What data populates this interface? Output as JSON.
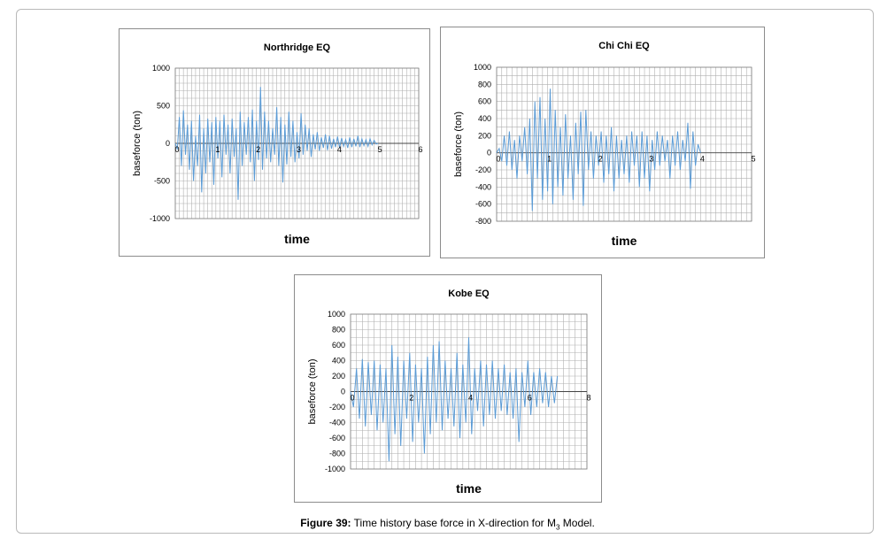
{
  "chart_data": [
    {
      "type": "line",
      "title": "Northridge EQ",
      "xlabel": "time",
      "ylabel": "baseforce (ton)",
      "xlim": [
        0,
        6
      ],
      "ylim": [
        -1000,
        1000
      ],
      "xticks": [
        "0",
        "1",
        "2",
        "3",
        "4",
        "5",
        "6"
      ],
      "yticks": [
        "1000",
        "500",
        "0",
        "-500",
        "-1000"
      ],
      "grid": true,
      "line_color": "#5b9bd5",
      "series": [
        {
          "x": [
            0,
            0.05,
            0.1,
            0.15,
            0.2,
            0.25,
            0.3,
            0.35,
            0.4,
            0.45,
            0.5,
            0.55,
            0.6,
            0.65,
            0.7,
            0.75,
            0.8,
            0.85,
            0.9,
            0.95,
            1,
            1.05,
            1.1,
            1.15,
            1.2,
            1.25,
            1.3,
            1.35,
            1.4,
            1.45,
            1.5,
            1.55,
            1.6,
            1.65,
            1.7,
            1.75,
            1.8,
            1.85,
            1.9,
            1.95,
            2,
            2.05,
            2.1,
            2.15,
            2.2,
            2.25,
            2.3,
            2.35,
            2.4,
            2.45,
            2.5,
            2.55,
            2.6,
            2.65,
            2.7,
            2.75,
            2.8,
            2.85,
            2.9,
            2.95,
            3,
            3.05,
            3.1,
            3.15,
            3.2,
            3.25,
            3.3,
            3.35,
            3.4,
            3.45,
            3.5,
            3.55,
            3.6,
            3.65,
            3.7,
            3.75,
            3.8,
            3.85,
            3.9,
            3.95,
            4,
            4.05,
            4.1,
            4.15,
            4.2,
            4.25,
            4.3,
            4.35,
            4.4,
            4.45,
            4.5,
            4.55,
            4.6,
            4.65,
            4.7,
            4.75,
            4.8,
            4.85,
            4.9,
            4.95,
            5
          ],
          "values": [
            0,
            -80,
            350,
            -300,
            440,
            -150,
            250,
            -350,
            300,
            -500,
            100,
            -300,
            380,
            -650,
            200,
            -400,
            330,
            -250,
            280,
            -550,
            350,
            -200,
            300,
            -450,
            380,
            -150,
            250,
            -400,
            330,
            -180,
            200,
            -750,
            420,
            -300,
            280,
            -150,
            350,
            -250,
            450,
            -500,
            300,
            -220,
            750,
            -350,
            420,
            -200,
            300,
            -250,
            200,
            -150,
            480,
            -300,
            350,
            -520,
            250,
            -280,
            420,
            -180,
            300,
            -250,
            150,
            -200,
            400,
            -150,
            250,
            -100,
            200,
            -180,
            120,
            -80,
            150,
            -100,
            80,
            -60,
            120,
            -90,
            100,
            -70,
            60,
            -50,
            90,
            -60,
            70,
            -40,
            50,
            -60,
            80,
            -50,
            60,
            -40,
            100,
            -50,
            60,
            -30,
            50,
            -40,
            60,
            -20,
            40,
            -10,
            0
          ]
        }
      ]
    },
    {
      "type": "line",
      "title": "Chi Chi EQ",
      "xlabel": "time",
      "ylabel": "baseforce (ton)",
      "xlim": [
        0,
        5
      ],
      "ylim": [
        -800,
        1000
      ],
      "xticks": [
        "0",
        "1",
        "2",
        "3",
        "4",
        "5"
      ],
      "yticks": [
        "1000",
        "800",
        "600",
        "400",
        "200",
        "0",
        "-200",
        "-400",
        "-600",
        "-800"
      ],
      "grid": true,
      "line_color": "#5b9bd5",
      "series": [
        {
          "x": [
            0,
            0.05,
            0.1,
            0.15,
            0.2,
            0.25,
            0.3,
            0.35,
            0.4,
            0.45,
            0.5,
            0.55,
            0.6,
            0.65,
            0.7,
            0.75,
            0.8,
            0.85,
            0.9,
            0.95,
            1,
            1.05,
            1.1,
            1.15,
            1.2,
            1.25,
            1.3,
            1.35,
            1.4,
            1.45,
            1.5,
            1.55,
            1.6,
            1.65,
            1.7,
            1.75,
            1.8,
            1.85,
            1.9,
            1.95,
            2,
            2.05,
            2.1,
            2.15,
            2.2,
            2.25,
            2.3,
            2.35,
            2.4,
            2.45,
            2.5,
            2.55,
            2.6,
            2.65,
            2.7,
            2.75,
            2.8,
            2.85,
            2.9,
            2.95,
            3,
            3.05,
            3.1,
            3.15,
            3.2,
            3.25,
            3.3,
            3.35,
            3.4,
            3.45,
            3.5,
            3.55,
            3.6,
            3.65,
            3.7,
            3.75,
            3.8,
            3.85,
            3.9,
            3.95,
            4
          ],
          "values": [
            0,
            50,
            -100,
            200,
            -150,
            250,
            -200,
            150,
            -300,
            200,
            -100,
            300,
            -250,
            400,
            -680,
            600,
            -300,
            650,
            -550,
            400,
            -450,
            750,
            -600,
            500,
            -400,
            300,
            -500,
            450,
            -300,
            200,
            -550,
            350,
            -250,
            480,
            -620,
            500,
            -200,
            250,
            -300,
            200,
            -150,
            250,
            -350,
            200,
            -250,
            300,
            -450,
            200,
            -300,
            150,
            -250,
            200,
            -350,
            250,
            -150,
            200,
            -400,
            250,
            -300,
            200,
            -450,
            150,
            -200,
            250,
            -150,
            200,
            -100,
            150,
            -300,
            200,
            -150,
            250,
            -200,
            150,
            -100,
            350,
            -420,
            250,
            -150,
            100,
            0
          ]
        }
      ]
    },
    {
      "type": "line",
      "title": "Kobe EQ",
      "xlabel": "time",
      "ylabel": "baseforce (ton)",
      "xlim": [
        0,
        8
      ],
      "ylim": [
        -1000,
        1000
      ],
      "xticks": [
        "0",
        "2",
        "4",
        "6",
        "8"
      ],
      "yticks": [
        "1000",
        "800",
        "600",
        "400",
        "200",
        "0",
        "-200",
        "-400",
        "-600",
        "-800",
        "-1000"
      ],
      "grid": true,
      "line_color": "#5b9bd5",
      "series": [
        {
          "x": [
            0,
            0.1,
            0.2,
            0.3,
            0.4,
            0.5,
            0.6,
            0.7,
            0.8,
            0.9,
            1,
            1.1,
            1.2,
            1.3,
            1.4,
            1.5,
            1.6,
            1.7,
            1.8,
            1.9,
            2,
            2.1,
            2.2,
            2.3,
            2.4,
            2.5,
            2.6,
            2.7,
            2.8,
            2.9,
            3,
            3.1,
            3.2,
            3.3,
            3.4,
            3.5,
            3.6,
            3.7,
            3.8,
            3.9,
            4,
            4.1,
            4.2,
            4.3,
            4.4,
            4.5,
            4.6,
            4.7,
            4.8,
            4.9,
            5,
            5.1,
            5.2,
            5.3,
            5.4,
            5.5,
            5.6,
            5.7,
            5.8,
            5.9,
            6,
            6.1,
            6.2,
            6.3,
            6.4,
            6.5,
            6.6,
            6.7,
            6.8,
            6.9,
            7
          ],
          "values": [
            0,
            -200,
            300,
            -350,
            420,
            -450,
            380,
            -300,
            400,
            -500,
            350,
            -400,
            300,
            -900,
            600,
            -550,
            450,
            -700,
            400,
            -350,
            500,
            -650,
            350,
            -400,
            300,
            -800,
            450,
            -550,
            600,
            -400,
            650,
            -500,
            400,
            -350,
            300,
            -450,
            500,
            -600,
            350,
            -400,
            700,
            -550,
            300,
            -250,
            400,
            -450,
            350,
            -300,
            400,
            -350,
            300,
            -250,
            350,
            -300,
            250,
            -350,
            300,
            -650,
            250,
            -200,
            400,
            -300,
            250,
            -200,
            300,
            -150,
            250,
            -200,
            200,
            -150,
            200
          ]
        }
      ]
    }
  ],
  "caption": {
    "label": "Figure 39:",
    "text_before_sub": "Time history base force in X-direction for M",
    "sub": "3",
    "text_after_sub": " Model."
  }
}
